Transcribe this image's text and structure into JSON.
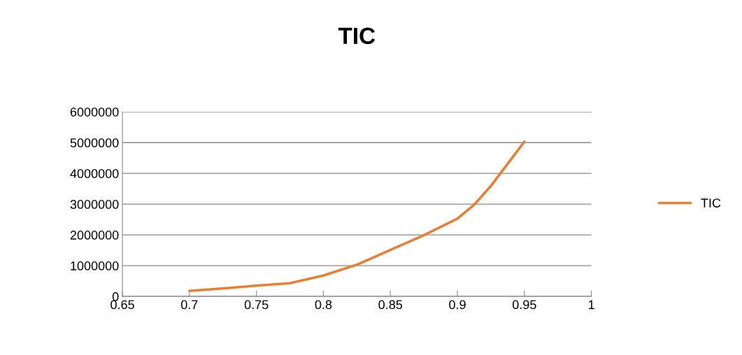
{
  "chart_data": {
    "type": "line",
    "title": "TIC",
    "series": [
      {
        "name": "TIC",
        "color": "#ed7d31",
        "x": [
          0.7,
          0.725,
          0.75,
          0.775,
          0.8,
          0.825,
          0.85,
          0.875,
          0.9,
          0.9125,
          0.925,
          0.9375,
          0.95
        ],
        "values": [
          180000,
          260000,
          350000,
          430000,
          680000,
          1030000,
          1510000,
          1990000,
          2530000,
          2980000,
          3590000,
          4310000,
          5030000
        ]
      }
    ],
    "xlim": [
      0.65,
      1
    ],
    "xticks": [
      0.65,
      0.7,
      0.75,
      0.8,
      0.85,
      0.9,
      0.95,
      1
    ],
    "ylim": [
      0,
      6000000
    ],
    "yticks": [
      0,
      1000000,
      2000000,
      3000000,
      4000000,
      5000000,
      6000000
    ],
    "grid": "y",
    "legend": "right",
    "marker": "none",
    "line_style": "solid"
  }
}
